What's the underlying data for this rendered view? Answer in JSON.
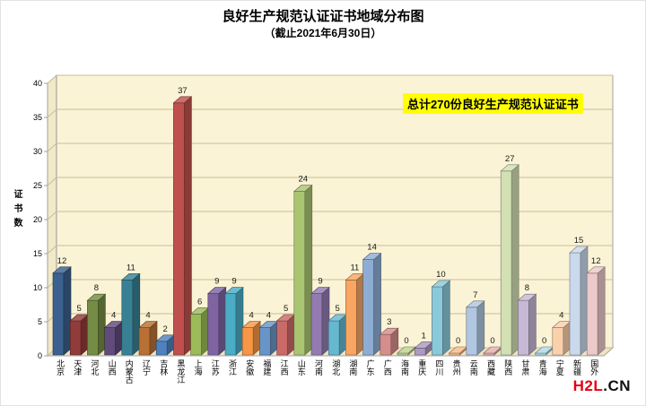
{
  "title": {
    "line1": "良好生产规范认证证书地域分布图",
    "line2": "（截止2021年6月30日）"
  },
  "annotation": "总计270份良好生产规范认证证书",
  "y_axis": {
    "title": "证书数",
    "ticks": [
      0,
      5,
      10,
      15,
      20,
      25,
      30,
      35,
      40
    ],
    "max": 40
  },
  "watermark": {
    "red": "H2L",
    "black": ".CN"
  },
  "colors": {
    "wall": "#fbf3d5",
    "side_wall": "#f2e9c9",
    "floor": "#ede4c3",
    "gridline": "#c8bd9a",
    "frame": "#8c8c8c",
    "annotation_bg": "#ffff00",
    "watermark_red": "#e60012"
  },
  "chart_data": {
    "type": "bar",
    "style": "3d-column",
    "title": "良好生产规范认证证书地域分布图（截止2021年6月30日）",
    "total": 270,
    "ylabel": "证书数",
    "xlabel": "",
    "ylim": [
      0,
      40
    ],
    "grid": true,
    "legend": "none",
    "categories": [
      "北京",
      "天津",
      "河北",
      "山西",
      "内蒙古",
      "辽宁",
      "吉林",
      "黑龙江",
      "上海",
      "江苏",
      "浙江",
      "安徽",
      "福建",
      "江西",
      "山东",
      "河南",
      "湖北",
      "湖南",
      "广东",
      "广西",
      "海南",
      "重庆",
      "四川",
      "贵州",
      "云南",
      "西藏",
      "陕西",
      "甘肃",
      "青海",
      "宁夏",
      "新疆",
      "国外"
    ],
    "values": [
      12,
      5,
      8,
      4,
      11,
      4,
      2,
      37,
      6,
      9,
      9,
      4,
      4,
      5,
      24,
      9,
      5,
      11,
      14,
      3,
      0,
      1,
      10,
      0,
      7,
      0,
      27,
      8,
      0,
      4,
      15,
      12
    ],
    "bar_colors": [
      "#3B618E",
      "#903C3A",
      "#748C43",
      "#604B7A",
      "#388195",
      "#B97035",
      "#4F81BD",
      "#C0504D",
      "#9BBB59",
      "#8064A2",
      "#4BACC6",
      "#F79646",
      "#6994C7",
      "#C96A68",
      "#AAC572",
      "#937BB0",
      "#66B8CF",
      "#F8A662",
      "#8DADD4",
      "#D68D8B",
      "#BED393",
      "#AC9AC3",
      "#8AC9DA",
      "#FABB87",
      "#B0C6E1",
      "#E3B0AF",
      "#D2E0B4",
      "#C6B9D5",
      "#AEDAE5",
      "#FBD0AC",
      "#CAD9EC",
      "#ECCAC9"
    ]
  }
}
